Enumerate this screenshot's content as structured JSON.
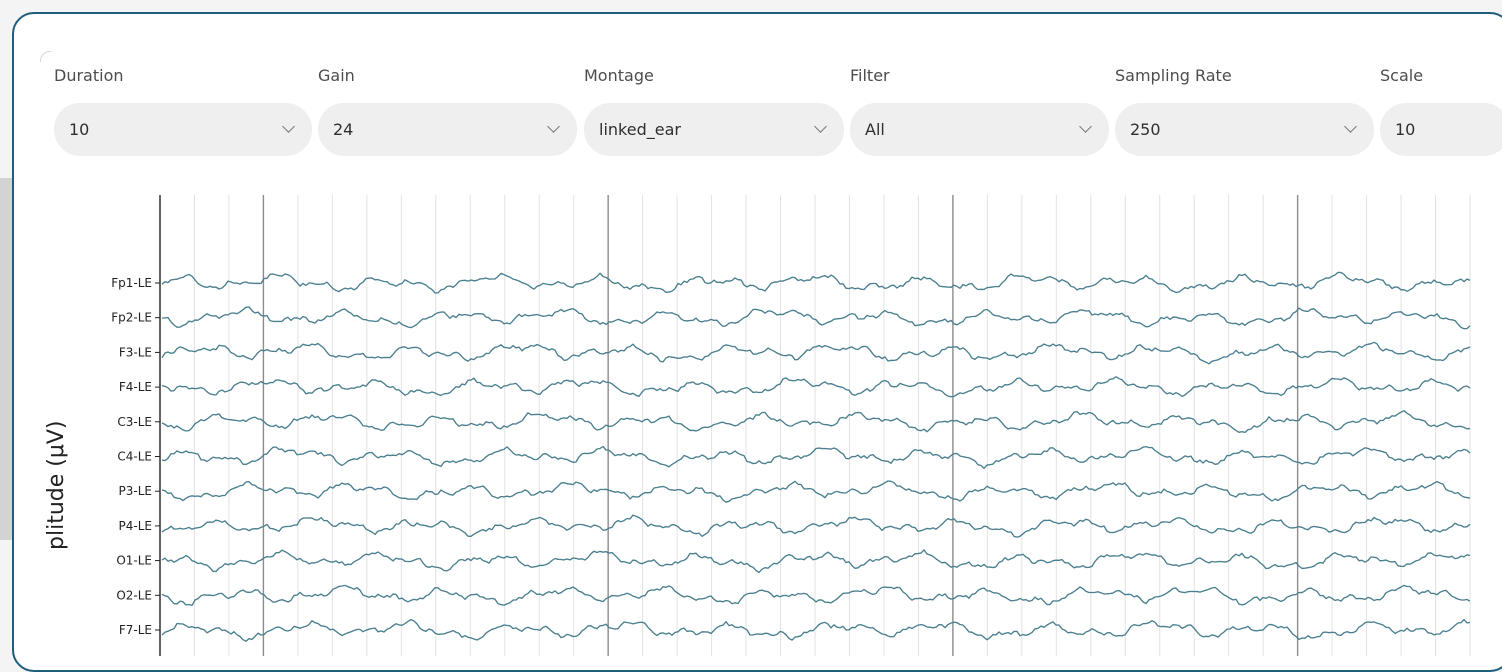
{
  "controls": {
    "duration": {
      "label": "Duration",
      "value": "10"
    },
    "gain": {
      "label": "Gain",
      "value": "24"
    },
    "montage": {
      "label": "Montage",
      "value": "linked_ear"
    },
    "filter": {
      "label": "Filter",
      "value": "All"
    },
    "sampling_rate": {
      "label": "Sampling Rate",
      "value": "250"
    },
    "scale": {
      "label": "Scale",
      "value": "10"
    }
  },
  "chart": {
    "y_axis_title": "plitude (μV)"
  },
  "colors": {
    "panel_border": "#1f5d7c",
    "trace": "#4a7f8f",
    "grid": "#e2e2e2",
    "major_grid": "#8c8c8c"
  },
  "icons": [
    "chevron-down-icon"
  ],
  "chart_data": {
    "type": "line",
    "ylabel": "plitude (μV)",
    "series": [
      {
        "name": "Fp1-LE"
      },
      {
        "name": "Fp2-LE"
      },
      {
        "name": "F3-LE"
      },
      {
        "name": "F4-LE"
      },
      {
        "name": "C3-LE"
      },
      {
        "name": "C4-LE"
      },
      {
        "name": "P3-LE"
      },
      {
        "name": "P4-LE"
      },
      {
        "name": "O1-LE"
      },
      {
        "name": "O2-LE"
      },
      {
        "name": "F7-LE"
      }
    ],
    "grid": true,
    "legend": "left-side channel labels"
  }
}
